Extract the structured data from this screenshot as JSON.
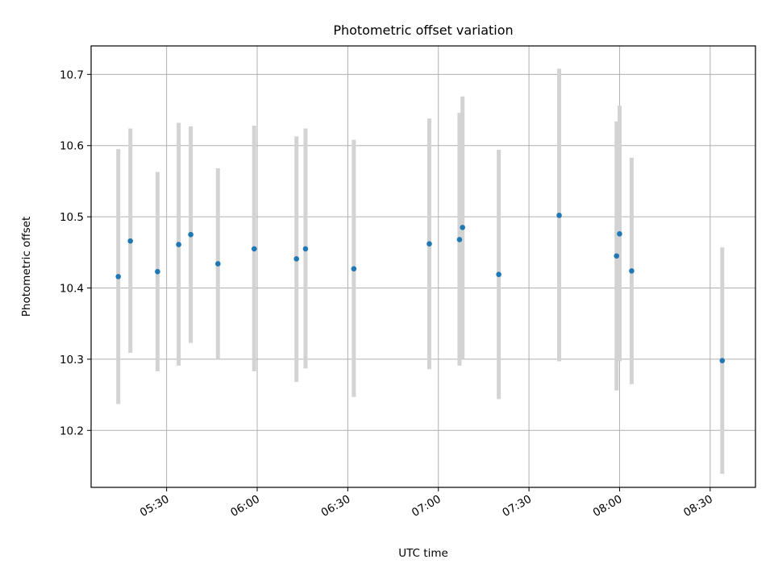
{
  "chart_data": {
    "type": "scatter",
    "title": "Photometric offset variation",
    "xlabel": "UTC time",
    "ylabel": "Photometric offset",
    "xlim": [
      "05:05",
      "08:45"
    ],
    "ylim": [
      10.12,
      10.74
    ],
    "x_ticks": [
      "05:30",
      "06:00",
      "06:30",
      "07:00",
      "07:30",
      "08:00",
      "08:30"
    ],
    "y_ticks": [
      10.2,
      10.3,
      10.4,
      10.5,
      10.6,
      10.7
    ],
    "grid": true,
    "colors": {
      "marker": "#1f77b4",
      "errorbar": "#d3d3d3",
      "grid": "#b0b0b0"
    },
    "points": [
      {
        "t": "05:14",
        "y": 10.416,
        "lo": 10.237,
        "hi": 10.595
      },
      {
        "t": "05:18",
        "y": 10.466,
        "lo": 10.309,
        "hi": 10.624
      },
      {
        "t": "05:27",
        "y": 10.423,
        "lo": 10.283,
        "hi": 10.563
      },
      {
        "t": "05:34",
        "y": 10.461,
        "lo": 10.291,
        "hi": 10.632
      },
      {
        "t": "05:38",
        "y": 10.475,
        "lo": 10.323,
        "hi": 10.627
      },
      {
        "t": "05:47",
        "y": 10.434,
        "lo": 10.3,
        "hi": 10.568
      },
      {
        "t": "05:59",
        "y": 10.455,
        "lo": 10.283,
        "hi": 10.628
      },
      {
        "t": "06:13",
        "y": 10.441,
        "lo": 10.268,
        "hi": 10.613
      },
      {
        "t": "06:16",
        "y": 10.455,
        "lo": 10.287,
        "hi": 10.624
      },
      {
        "t": "06:32",
        "y": 10.427,
        "lo": 10.247,
        "hi": 10.608
      },
      {
        "t": "06:57",
        "y": 10.462,
        "lo": 10.286,
        "hi": 10.638
      },
      {
        "t": "07:07",
        "y": 10.468,
        "lo": 10.291,
        "hi": 10.646
      },
      {
        "t": "07:08",
        "y": 10.485,
        "lo": 10.301,
        "hi": 10.669
      },
      {
        "t": "07:20",
        "y": 10.419,
        "lo": 10.244,
        "hi": 10.594
      },
      {
        "t": "07:40",
        "y": 10.502,
        "lo": 10.297,
        "hi": 10.708
      },
      {
        "t": "07:59",
        "y": 10.445,
        "lo": 10.256,
        "hi": 10.634
      },
      {
        "t": "08:00",
        "y": 10.476,
        "lo": 10.297,
        "hi": 10.656
      },
      {
        "t": "08:04",
        "y": 10.424,
        "lo": 10.265,
        "hi": 10.583
      },
      {
        "t": "08:34",
        "y": 10.298,
        "lo": 10.139,
        "hi": 10.457
      }
    ]
  }
}
